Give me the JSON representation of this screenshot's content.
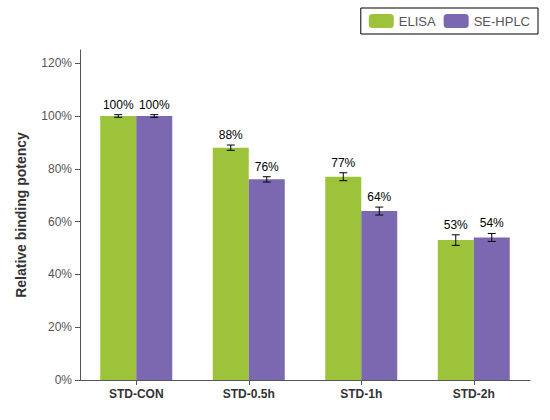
{
  "chart_data": {
    "type": "bar",
    "categories": [
      "STD-CON",
      "STD-0.5h",
      "STD-1h",
      "STD-2h"
    ],
    "series": [
      {
        "name": "ELISA",
        "color": "#9DC33B",
        "values": [
          100,
          88,
          77,
          53
        ],
        "errors": [
          0.5,
          1.0,
          1.5,
          2.0
        ],
        "value_labels": [
          "100%",
          "88%",
          "77%",
          "53%"
        ]
      },
      {
        "name": "SE-HPLC",
        "color": "#7B68B0",
        "values": [
          100,
          76,
          64,
          54
        ],
        "errors": [
          0.5,
          1.0,
          1.5,
          1.5
        ],
        "value_labels": [
          "100%",
          "76%",
          "64%",
          "54%"
        ]
      }
    ],
    "ylabel": "Relative binding potency",
    "ylim": [
      0,
      125
    ],
    "yticks": [
      {
        "value": 0,
        "label": "0%"
      },
      {
        "value": 20,
        "label": "20%"
      },
      {
        "value": 40,
        "label": "40%"
      },
      {
        "value": 60,
        "label": "60%"
      },
      {
        "value": 80,
        "label": "80%"
      },
      {
        "value": 100,
        "label": "100%"
      },
      {
        "value": 120,
        "label": "120%"
      }
    ],
    "grid": false,
    "legend": "upper right",
    "data_labels": true
  }
}
